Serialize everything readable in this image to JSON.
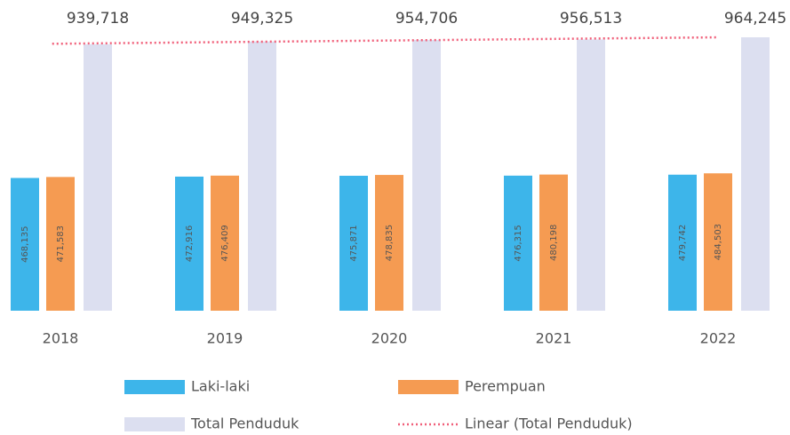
{
  "chart_data": {
    "type": "bar",
    "categories": [
      "2018",
      "2019",
      "2020",
      "2021",
      "2022"
    ],
    "series": [
      {
        "name": "Laki-laki",
        "color": "#3db5ea",
        "values": [
          468135,
          472916,
          475871,
          476315,
          479742
        ],
        "value_labels": [
          "468,135",
          "472,916",
          "475,871",
          "476,315",
          "479,742"
        ]
      },
      {
        "name": "Perempuan",
        "color": "#f59b52",
        "values": [
          471583,
          476409,
          478835,
          480198,
          484503
        ],
        "value_labels": [
          "471,583",
          "476,409",
          "478,835",
          "480,198",
          "484,503"
        ]
      },
      {
        "name": "Total Penduduk",
        "color": "#dcdff0",
        "values": [
          939718,
          949325,
          954706,
          956513,
          964245
        ],
        "value_labels": [
          "939,718",
          "949,325",
          "954,706",
          "956,513",
          "964,245"
        ]
      }
    ],
    "trendline": {
      "name": "Linear (Total Penduduk)",
      "color": "#f0607a"
    }
  }
}
